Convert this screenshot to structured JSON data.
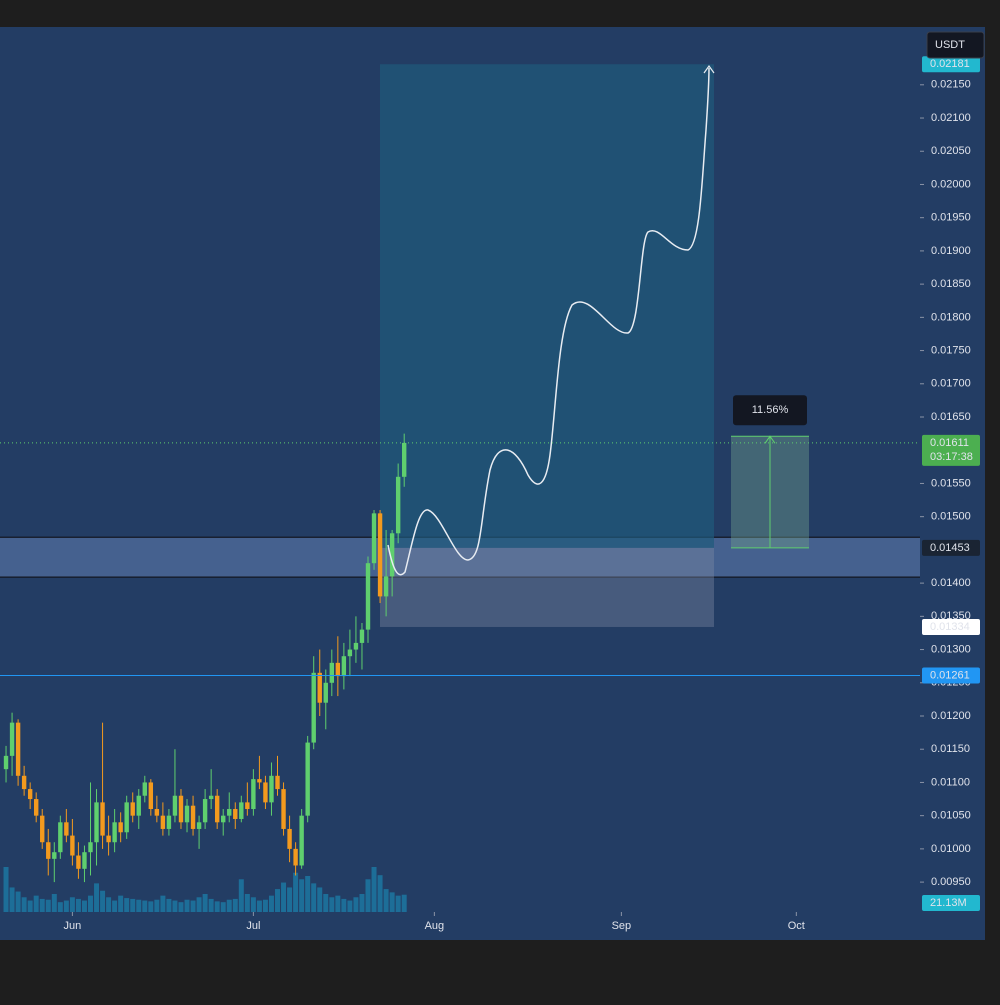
{
  "chart_data": {
    "type": "candlestick",
    "currency": "USDT",
    "x": [
      1,
      2,
      3,
      4,
      5,
      6,
      7,
      8,
      9,
      10,
      11,
      12,
      13,
      14,
      15,
      16,
      17,
      18,
      19,
      20,
      21,
      22,
      23,
      24,
      25,
      26,
      27,
      28,
      29,
      30,
      31,
      32,
      33,
      34,
      35,
      36,
      37,
      38,
      39,
      40,
      41,
      42,
      43,
      44,
      45,
      46,
      47,
      48,
      49,
      50,
      51,
      52,
      53,
      54,
      55,
      56,
      57,
      58,
      59,
      60,
      61,
      62,
      63,
      64,
      65,
      66,
      67
    ],
    "open": [
      0.0112,
      0.0114,
      0.0119,
      0.0111,
      0.0109,
      0.01075,
      0.0105,
      0.0101,
      0.00985,
      0.00995,
      0.0104,
      0.0102,
      0.0099,
      0.0097,
      0.00995,
      0.0101,
      0.0107,
      0.0102,
      0.0101,
      0.0104,
      0.01025,
      0.0107,
      0.0105,
      0.0108,
      0.011,
      0.0106,
      0.0105,
      0.0103,
      0.0105,
      0.0108,
      0.0104,
      0.01065,
      0.0103,
      0.0104,
      0.01075,
      0.0108,
      0.0104,
      0.0105,
      0.0106,
      0.01045,
      0.0107,
      0.0106,
      0.01105,
      0.011,
      0.0107,
      0.0111,
      0.0109,
      0.0103,
      0.01,
      0.00975,
      0.0105,
      0.0116,
      0.01265,
      0.0122,
      0.0125,
      0.0128,
      0.0126,
      0.0129,
      0.013,
      0.0131,
      0.0133,
      0.0143,
      0.01505,
      0.0138,
      0.0141,
      0.01475,
      0.0156
    ],
    "high": [
      0.01155,
      0.01205,
      0.01195,
      0.01125,
      0.011,
      0.01085,
      0.0106,
      0.0103,
      0.0101,
      0.0105,
      0.0106,
      0.01045,
      0.0101,
      0.01005,
      0.011,
      0.0109,
      0.0119,
      0.0105,
      0.0106,
      0.01055,
      0.0108,
      0.01085,
      0.0109,
      0.0111,
      0.01105,
      0.0108,
      0.0107,
      0.0106,
      0.0115,
      0.0109,
      0.01075,
      0.0108,
      0.0105,
      0.0109,
      0.0112,
      0.0109,
      0.0106,
      0.01085,
      0.0107,
      0.0108,
      0.011,
      0.0112,
      0.0114,
      0.0111,
      0.0113,
      0.0114,
      0.011,
      0.0105,
      0.0101,
      0.0106,
      0.0117,
      0.0129,
      0.013,
      0.0127,
      0.013,
      0.0132,
      0.0131,
      0.0133,
      0.0135,
      0.0134,
      0.0144,
      0.0151,
      0.0151,
      0.0148,
      0.0148,
      0.0158,
      0.01625
    ],
    "low": [
      0.011,
      0.0111,
      0.01095,
      0.0108,
      0.0106,
      0.0104,
      0.01,
      0.0096,
      0.0095,
      0.00985,
      0.0101,
      0.00975,
      0.00955,
      0.0095,
      0.0096,
      0.00975,
      0.01,
      0.0099,
      0.00995,
      0.0101,
      0.01015,
      0.0104,
      0.0103,
      0.0107,
      0.0105,
      0.0104,
      0.0102,
      0.0102,
      0.0104,
      0.0103,
      0.01025,
      0.0102,
      0.01,
      0.0103,
      0.0106,
      0.0103,
      0.0102,
      0.0104,
      0.0103,
      0.0104,
      0.0105,
      0.0105,
      0.0109,
      0.0106,
      0.0105,
      0.0108,
      0.0102,
      0.0098,
      0.0096,
      0.0097,
      0.0104,
      0.0115,
      0.012,
      0.0118,
      0.0123,
      0.0123,
      0.0124,
      0.0126,
      0.0128,
      0.0127,
      0.0131,
      0.0142,
      0.0137,
      0.0135,
      0.0138,
      0.0146,
      0.01545
    ],
    "close": [
      0.0114,
      0.0119,
      0.0111,
      0.0109,
      0.01075,
      0.0105,
      0.0101,
      0.00985,
      0.00995,
      0.0104,
      0.0102,
      0.0099,
      0.0097,
      0.00995,
      0.0101,
      0.0107,
      0.0102,
      0.0101,
      0.0104,
      0.01025,
      0.0107,
      0.0105,
      0.0108,
      0.011,
      0.0106,
      0.0105,
      0.0103,
      0.0105,
      0.0108,
      0.0104,
      0.01065,
      0.0103,
      0.0104,
      0.01075,
      0.0108,
      0.0104,
      0.0105,
      0.0106,
      0.01045,
      0.0107,
      0.0106,
      0.01105,
      0.011,
      0.0107,
      0.0111,
      0.0109,
      0.0103,
      0.01,
      0.00975,
      0.0105,
      0.0116,
      0.01265,
      0.0122,
      0.0125,
      0.0128,
      0.0126,
      0.0129,
      0.013,
      0.0131,
      0.0133,
      0.0143,
      0.01505,
      0.0138,
      0.0141,
      0.01475,
      0.0156,
      0.01611
    ],
    "volume": [
      55,
      30,
      25,
      18,
      14,
      20,
      16,
      15,
      22,
      12,
      14,
      18,
      16,
      14,
      20,
      35,
      26,
      18,
      14,
      20,
      17,
      16,
      15,
      14,
      13,
      15,
      20,
      16,
      14,
      12,
      15,
      14,
      18,
      22,
      16,
      13,
      12,
      15,
      16,
      40,
      22,
      18,
      14,
      15,
      20,
      28,
      36,
      30,
      48,
      40,
      44,
      35,
      30,
      22,
      18,
      20,
      16,
      14,
      18,
      22,
      40,
      55,
      45,
      28,
      24,
      20,
      21.13
    ],
    "volume_label": "21.13M",
    "up_color": "#5fcf6e",
    "down_color": "#f39a1e",
    "volume_color": "#1d6e98",
    "xlim": [
      0,
      152.5
    ],
    "xticks": [
      {
        "value": 12,
        "label": "Jun"
      },
      {
        "value": 42,
        "label": "Jul"
      },
      {
        "value": 72,
        "label": "Aug"
      },
      {
        "value": 103,
        "label": "Sep"
      },
      {
        "value": 132,
        "label": "Oct"
      }
    ],
    "ylim": [
      0.00905,
      0.02237
    ],
    "yticks": [
      {
        "value": 0.0095,
        "label": "0.00950"
      },
      {
        "value": 0.01,
        "label": "0.01000"
      },
      {
        "value": 0.0105,
        "label": "0.01050"
      },
      {
        "value": 0.011,
        "label": "0.01100"
      },
      {
        "value": 0.0115,
        "label": "0.01150"
      },
      {
        "value": 0.012,
        "label": "0.01200"
      },
      {
        "value": 0.0125,
        "label": "0.01250"
      },
      {
        "value": 0.013,
        "label": "0.01300"
      },
      {
        "value": 0.0135,
        "label": "0.01350"
      },
      {
        "value": 0.014,
        "label": "0.01400"
      },
      {
        "value": 0.015,
        "label": "0.01500"
      },
      {
        "value": 0.0155,
        "label": "0.01550"
      },
      {
        "value": 0.0165,
        "label": "0.01650"
      },
      {
        "value": 0.017,
        "label": "0.01700"
      },
      {
        "value": 0.0175,
        "label": "0.01750"
      },
      {
        "value": 0.018,
        "label": "0.01800"
      },
      {
        "value": 0.0185,
        "label": "0.01850"
      },
      {
        "value": 0.019,
        "label": "0.01900"
      },
      {
        "value": 0.0195,
        "label": "0.01950"
      },
      {
        "value": 0.02,
        "label": "0.02000"
      },
      {
        "value": 0.0205,
        "label": "0.02050"
      },
      {
        "value": 0.021,
        "label": "0.02100"
      },
      {
        "value": 0.0215,
        "label": "0.02150"
      }
    ],
    "zone": [
      0.01409,
      0.01469
    ],
    "position": {
      "target": 0.02181,
      "entry": 0.01453,
      "stop": 0.01334
    },
    "current_price": 0.01611,
    "countdown": "03:17:38",
    "alert_level": 0.01261,
    "measure": {
      "from": 0.01453,
      "to": 0.01621,
      "label": "11.56%"
    }
  }
}
